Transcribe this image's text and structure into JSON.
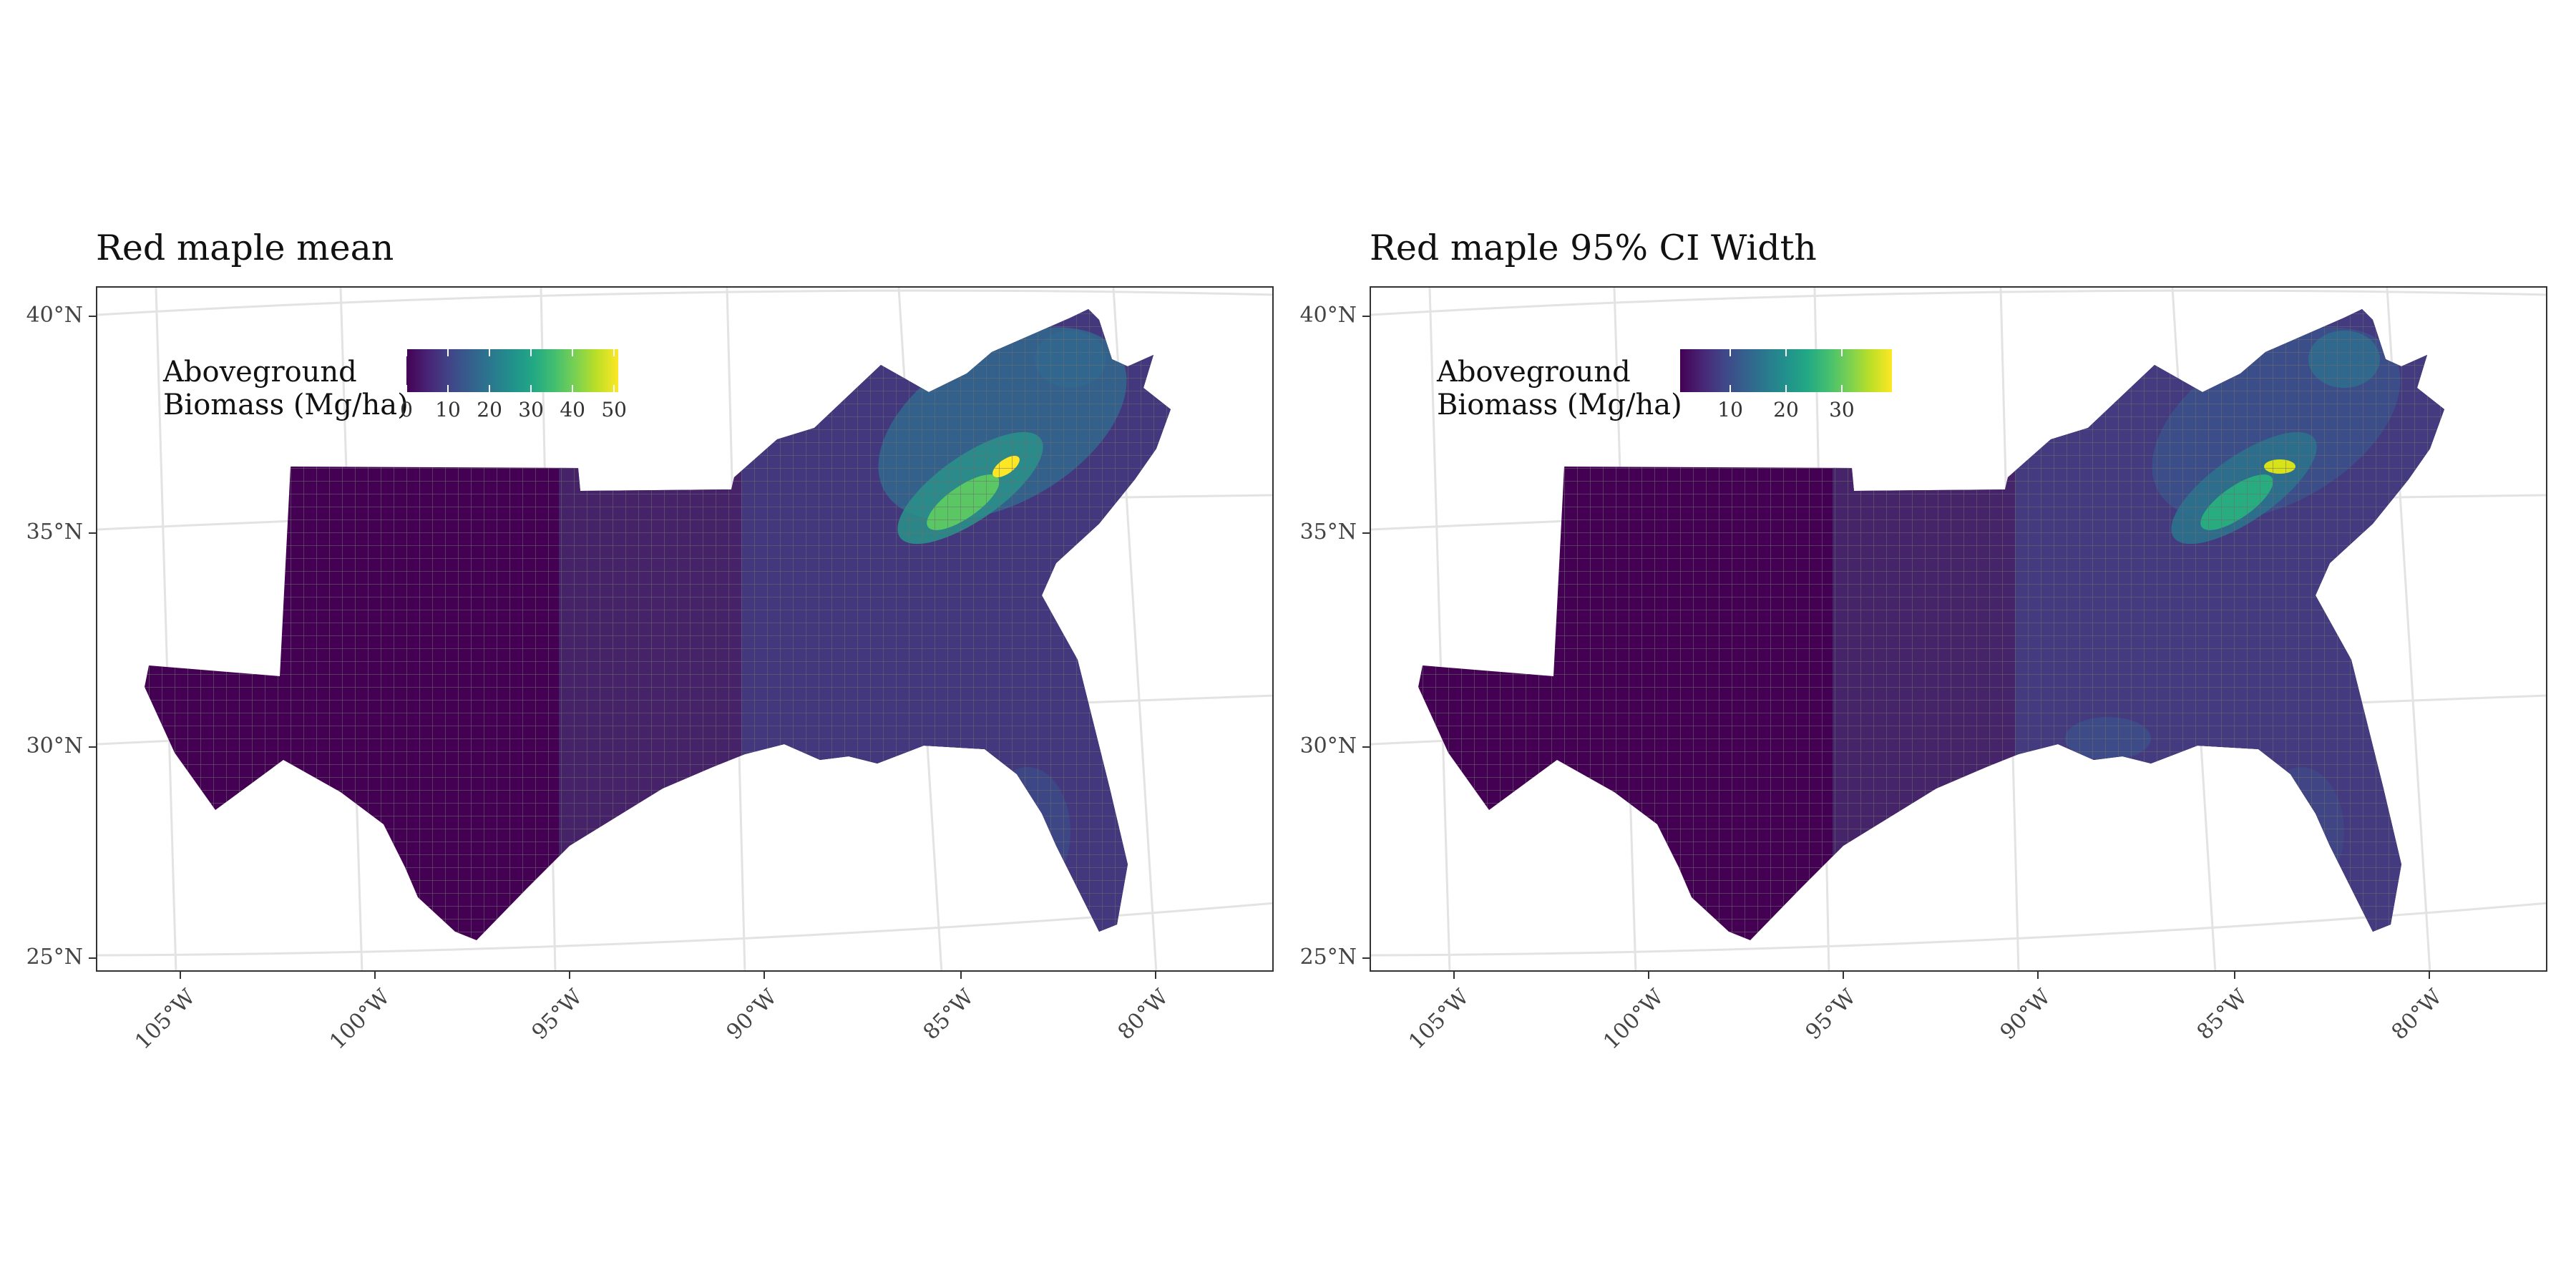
{
  "panels": [
    {
      "title": "Red maple mean",
      "legend": {
        "title_line1": "Aboveground",
        "title_line2": "Biomass (Mg/ha)",
        "min": 0,
        "max": 51,
        "tick_values": [
          0,
          10,
          20,
          30,
          40,
          50
        ],
        "tick_labels": [
          "0",
          "10",
          "20",
          "30",
          "40",
          "50"
        ]
      }
    },
    {
      "title": "Red maple 95% CI Width",
      "legend": {
        "title_line1": "Aboveground",
        "title_line2": "Biomass (Mg/ha)",
        "min": 1,
        "max": 39,
        "tick_values": [
          10,
          20,
          30
        ],
        "tick_labels": [
          "10",
          "20",
          "30"
        ]
      }
    }
  ],
  "axes": {
    "lat_labels": [
      "40°N",
      "35°N",
      "30°N",
      "25°N"
    ],
    "lon_labels": [
      "105°W",
      "100°W",
      "95°W",
      "90°W",
      "85°W",
      "80°W"
    ]
  },
  "colors": {
    "low": "#440154",
    "mid": "#21918c",
    "high": "#fde725",
    "county_border": "#6e6e6e",
    "graticule": "#e3e3e3"
  }
}
